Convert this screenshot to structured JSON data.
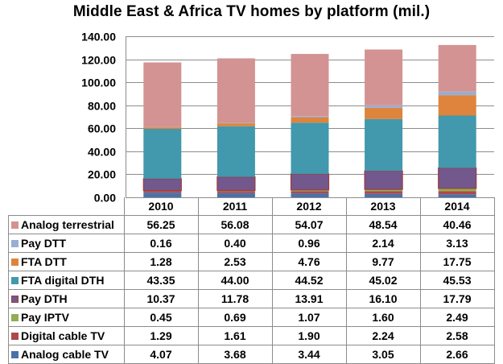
{
  "chart_data": {
    "type": "bar",
    "stacked": true,
    "title": "Middle East & Africa TV homes by platform (mil.)",
    "xlabel": "",
    "ylabel": "",
    "ylim": [
      0,
      140
    ],
    "yticks": [
      "0.00",
      "20.00",
      "40.00",
      "60.00",
      "80.00",
      "100.00",
      "120.00",
      "140.00"
    ],
    "ytick_values": [
      0,
      20,
      40,
      60,
      80,
      100,
      120,
      140
    ],
    "grid": true,
    "legend": "data-table-below",
    "categories": [
      "2010",
      "2011",
      "2012",
      "2013",
      "2014"
    ],
    "series": [
      {
        "name": "Analog cable TV",
        "color": "#4a72a8",
        "values": [
          4.07,
          3.68,
          3.44,
          3.05,
          2.66
        ],
        "display": [
          "4.07",
          "3.68",
          "3.44",
          "3.05",
          "2.66"
        ]
      },
      {
        "name": "Digital cable TV",
        "color": "#b0474a",
        "values": [
          1.29,
          1.61,
          1.9,
          2.24,
          2.58
        ],
        "display": [
          "1.29",
          "1.61",
          "1.90",
          "2.24",
          "2.58"
        ]
      },
      {
        "name": "Pay IPTV",
        "color": "#93ad52",
        "values": [
          0.45,
          0.69,
          1.07,
          1.6,
          2.49
        ],
        "display": [
          "0.45",
          "0.69",
          "1.07",
          "1.60",
          "2.49"
        ]
      },
      {
        "name": "Pay DTH",
        "color": "#72588c",
        "values": [
          10.37,
          11.78,
          13.91,
          16.1,
          17.79
        ],
        "display": [
          "10.37",
          "11.78",
          "13.91",
          "16.10",
          "17.79"
        ]
      },
      {
        "name": "FTA digital DTH",
        "color": "#4298ad",
        "values": [
          43.35,
          44.0,
          44.52,
          45.02,
          45.53
        ],
        "display": [
          "43.35",
          "44.00",
          "44.52",
          "45.02",
          "45.53"
        ]
      },
      {
        "name": "FTA DTT",
        "color": "#de843c",
        "values": [
          1.28,
          2.53,
          4.76,
          9.77,
          17.75
        ],
        "display": [
          "1.28",
          "2.53",
          "4.76",
          "9.77",
          "17.75"
        ]
      },
      {
        "name": "Pay DTT",
        "color": "#98aed3",
        "values": [
          0.16,
          0.4,
          0.96,
          2.14,
          3.13
        ],
        "display": [
          "0.16",
          "0.40",
          "0.96",
          "2.14",
          "3.13"
        ]
      },
      {
        "name": "Analog terrestrial",
        "color": "#d39393",
        "values": [
          56.25,
          56.08,
          54.07,
          48.54,
          40.46
        ],
        "display": [
          "56.25",
          "56.08",
          "54.07",
          "48.54",
          "40.46"
        ]
      }
    ],
    "table_row_order": [
      "Analog terrestrial",
      "Pay DTT",
      "FTA DTT",
      "FTA digital DTH",
      "Pay DTH",
      "Pay IPTV",
      "Digital cable TV",
      "Analog cable TV"
    ]
  }
}
